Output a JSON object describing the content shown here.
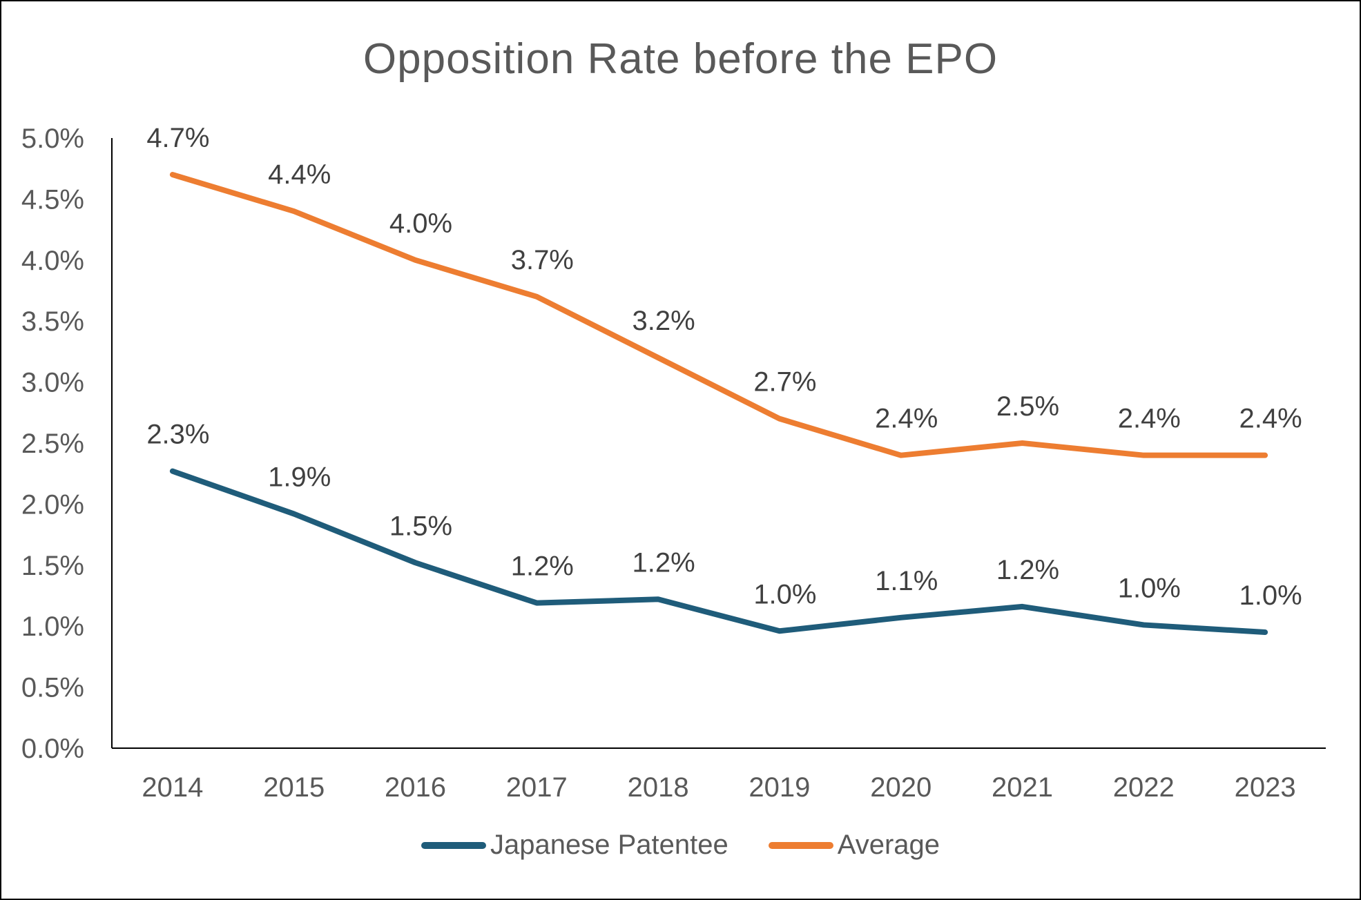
{
  "chart_data": {
    "type": "line",
    "title": "Opposition Rate before the EPO",
    "xlabel": "",
    "ylabel": "",
    "categories": [
      "2014",
      "2015",
      "2016",
      "2017",
      "2018",
      "2019",
      "2020",
      "2021",
      "2022",
      "2023"
    ],
    "ylim": [
      0,
      5.0
    ],
    "y_ticks": [
      "0.0%",
      "0.5%",
      "1.0%",
      "1.5%",
      "2.0%",
      "2.5%",
      "3.0%",
      "3.5%",
      "4.0%",
      "4.5%",
      "5.0%"
    ],
    "grid": false,
    "legend_position": "bottom",
    "series": [
      {
        "name": "Japanese Patentee",
        "color": "#1F5C7A",
        "values": [
          2.27,
          1.92,
          1.52,
          1.19,
          1.22,
          0.96,
          1.07,
          1.16,
          1.01,
          0.95
        ],
        "labels": [
          "2.3%",
          "1.9%",
          "1.5%",
          "1.2%",
          "1.2%",
          "1.0%",
          "1.1%",
          "1.2%",
          "1.0%",
          "1.0%"
        ]
      },
      {
        "name": "Average",
        "color": "#ED7D31",
        "values": [
          4.7,
          4.4,
          4.0,
          3.7,
          3.2,
          2.7,
          2.4,
          2.5,
          2.4,
          2.4
        ],
        "labels": [
          "4.7%",
          "4.4%",
          "4.0%",
          "3.7%",
          "3.2%",
          "2.7%",
          "2.4%",
          "2.5%",
          "2.4%",
          "2.4%"
        ]
      }
    ]
  }
}
